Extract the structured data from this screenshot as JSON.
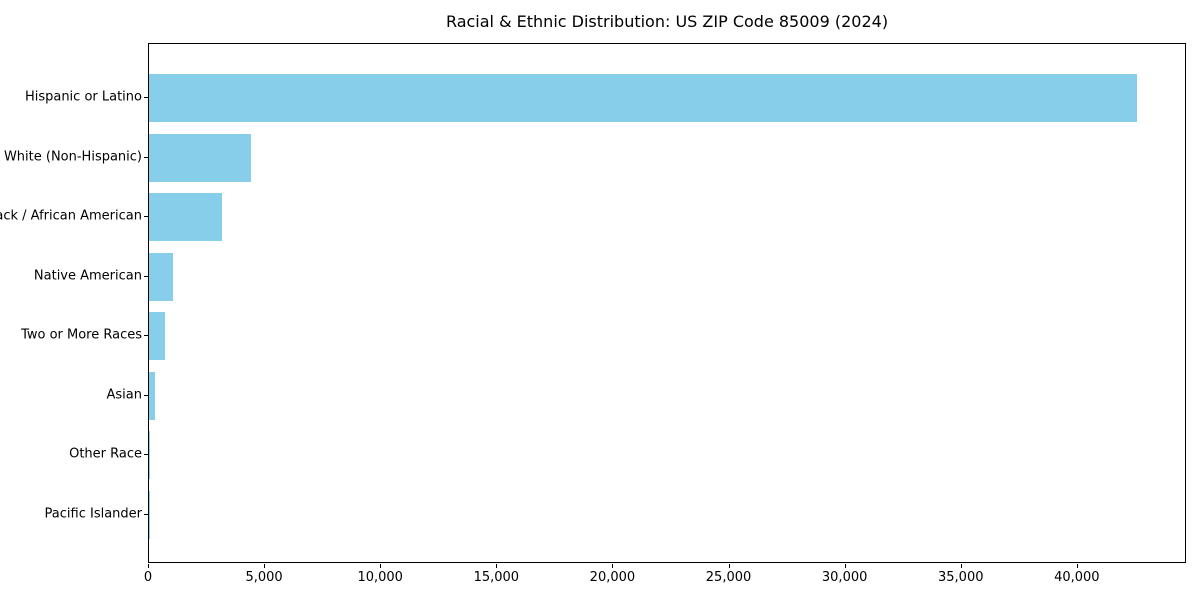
{
  "chart_data": {
    "type": "bar",
    "orientation": "horizontal",
    "title": "Racial & Ethnic Distribution: US ZIP Code 85009 (2024)",
    "categories": [
      "Hispanic or Latino",
      "White (Non-Hispanic)",
      "Black / African American",
      "Native American",
      "Two or More Races",
      "Asian",
      "Other Race",
      "Pacific Islander"
    ],
    "values": [
      42540,
      4400,
      3150,
      1030,
      690,
      260,
      50,
      10
    ],
    "xlabel": "",
    "ylabel": "",
    "xlim": [
      0,
      44700
    ],
    "x_ticks": [
      0,
      5000,
      10000,
      15000,
      20000,
      25000,
      30000,
      35000,
      40000
    ],
    "x_tick_labels": [
      "0",
      "5,000",
      "10,000",
      "15,000",
      "20,000",
      "25,000",
      "30,000",
      "35,000",
      "40,000"
    ],
    "bar_color": "#87CEEB",
    "frame_color": "#000000",
    "background_color": "#ffffff",
    "grid": false,
    "legend": null
  }
}
